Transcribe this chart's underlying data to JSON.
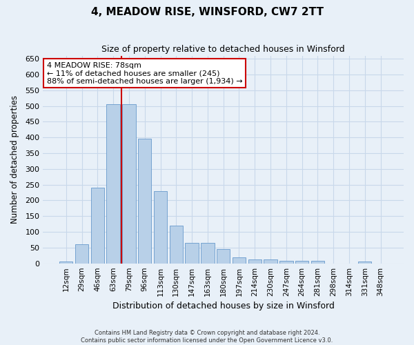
{
  "title": "4, MEADOW RISE, WINSFORD, CW7 2TT",
  "subtitle": "Size of property relative to detached houses in Winsford",
  "xlabel": "Distribution of detached houses by size in Winsford",
  "ylabel": "Number of detached properties",
  "bar_labels": [
    "12sqm",
    "29sqm",
    "46sqm",
    "63sqm",
    "79sqm",
    "96sqm",
    "113sqm",
    "130sqm",
    "147sqm",
    "163sqm",
    "180sqm",
    "197sqm",
    "214sqm",
    "230sqm",
    "247sqm",
    "264sqm",
    "281sqm",
    "298sqm",
    "314sqm",
    "331sqm",
    "348sqm"
  ],
  "bar_values": [
    5,
    60,
    240,
    505,
    505,
    395,
    230,
    120,
    65,
    65,
    45,
    20,
    12,
    12,
    8,
    8,
    8,
    0,
    0,
    5,
    0
  ],
  "bar_color": "#b8d0e8",
  "bar_edge_color": "#6699cc",
  "annotation_line1": "4 MEADOW RISE: 78sqm",
  "annotation_line2": "← 11% of detached houses are smaller (245)",
  "annotation_line3": "88% of semi-detached houses are larger (1,934) →",
  "annotation_box_color": "#ffffff",
  "annotation_box_edge": "#cc0000",
  "vline_color": "#cc0000",
  "vline_x": 3.5,
  "ylim": [
    0,
    660
  ],
  "yticks": [
    0,
    50,
    100,
    150,
    200,
    250,
    300,
    350,
    400,
    450,
    500,
    550,
    600,
    650
  ],
  "grid_color": "#c8d8ea",
  "background_color": "#e8f0f8",
  "footer1": "Contains HM Land Registry data © Crown copyright and database right 2024.",
  "footer2": "Contains public sector information licensed under the Open Government Licence v3.0."
}
